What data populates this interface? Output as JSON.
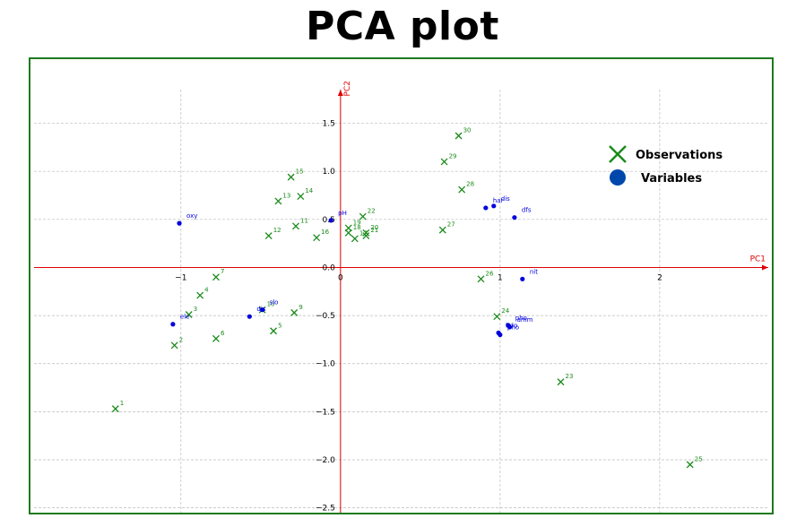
{
  "title": "PCA plot",
  "chart_data": {
    "type": "scatter",
    "title": "PCA plot",
    "xlabel": "PC1",
    "ylabel": "PC2",
    "xlim": [
      -1.92,
      2.68
    ],
    "ylim": [
      -2.55,
      1.85
    ],
    "xticks": [
      -1,
      0,
      1,
      2
    ],
    "xtick_labels": [
      "−1",
      "0",
      "1",
      "2"
    ],
    "yticks": [
      -2.5,
      -2.0,
      -1.5,
      -1.0,
      -0.5,
      0.0,
      0.5,
      1.0,
      1.5
    ],
    "ytick_labels": [
      "−2.5",
      "−2.0",
      "−1.5",
      "−1.0",
      "−0.5",
      "0.0",
      "0.5",
      "1.0",
      "1.5"
    ],
    "grid": true,
    "legend_position": "top-right",
    "legend": [
      "Observations",
      "Variables"
    ],
    "colors": {
      "observations": "#1a8a1a",
      "variables": "#0000dd",
      "axes": "#e00000",
      "grid": "#bbbbbb"
    },
    "series": [
      {
        "name": "Observations",
        "marker": "x",
        "points": [
          {
            "label": "1",
            "x": -1.41,
            "y": -1.47
          },
          {
            "label": "2",
            "x": -1.04,
            "y": -0.81
          },
          {
            "label": "3",
            "x": -0.95,
            "y": -0.49
          },
          {
            "label": "4",
            "x": -0.88,
            "y": -0.29
          },
          {
            "label": "5",
            "x": -0.42,
            "y": -0.66
          },
          {
            "label": "6",
            "x": -0.78,
            "y": -0.74
          },
          {
            "label": "7",
            "x": -0.78,
            "y": -0.1
          },
          {
            "label": "9",
            "x": -0.29,
            "y": -0.47
          },
          {
            "label": "10",
            "x": -0.49,
            "y": -0.44
          },
          {
            "label": "11",
            "x": -0.28,
            "y": 0.43
          },
          {
            "label": "12",
            "x": -0.45,
            "y": 0.33
          },
          {
            "label": "13",
            "x": -0.39,
            "y": 0.69
          },
          {
            "label": "14",
            "x": -0.25,
            "y": 0.74
          },
          {
            "label": "15",
            "x": -0.31,
            "y": 0.94
          },
          {
            "label": "16",
            "x": -0.15,
            "y": 0.31
          },
          {
            "label": "17",
            "x": 0.09,
            "y": 0.3
          },
          {
            "label": "18",
            "x": 0.05,
            "y": 0.36
          },
          {
            "label": "19",
            "x": 0.05,
            "y": 0.41
          },
          {
            "label": "20",
            "x": 0.16,
            "y": 0.36
          },
          {
            "label": "21",
            "x": 0.16,
            "y": 0.33
          },
          {
            "label": "22",
            "x": 0.14,
            "y": 0.53
          },
          {
            "label": "23",
            "x": 1.38,
            "y": -1.19
          },
          {
            "label": "24",
            "x": 0.98,
            "y": -0.51
          },
          {
            "label": "25",
            "x": 2.19,
            "y": -2.05
          },
          {
            "label": "26",
            "x": 0.88,
            "y": -0.12
          },
          {
            "label": "27",
            "x": 0.64,
            "y": 0.39
          },
          {
            "label": "28",
            "x": 0.76,
            "y": 0.81
          },
          {
            "label": "29",
            "x": 0.65,
            "y": 1.1
          },
          {
            "label": "30",
            "x": 0.74,
            "y": 1.37
          }
        ]
      },
      {
        "name": "Variables",
        "marker": "o",
        "points": [
          {
            "label": "oxy",
            "x": -1.01,
            "y": 0.46
          },
          {
            "label": "ele",
            "x": -1.05,
            "y": -0.59
          },
          {
            "label": "dis",
            "x": -0.57,
            "y": -0.51
          },
          {
            "label": "slo",
            "x": -0.49,
            "y": -0.44
          },
          {
            "label": "pH",
            "x": -0.06,
            "y": 0.49
          },
          {
            "label": "har",
            "x": 0.91,
            "y": 0.62
          },
          {
            "label": "dis",
            "x": 0.96,
            "y": 0.64
          },
          {
            "label": "dfs",
            "x": 1.09,
            "y": 0.52
          },
          {
            "label": "nit",
            "x": 1.14,
            "y": -0.12
          },
          {
            "label": "pho",
            "x": 1.05,
            "y": -0.6
          },
          {
            "label": "amm",
            "x": 1.06,
            "y": -0.62
          },
          {
            "label": "bdo",
            "x": 0.99,
            "y": -0.68
          },
          {
            "label": "pho",
            "x": 1.0,
            "y": -0.7
          }
        ]
      }
    ]
  }
}
